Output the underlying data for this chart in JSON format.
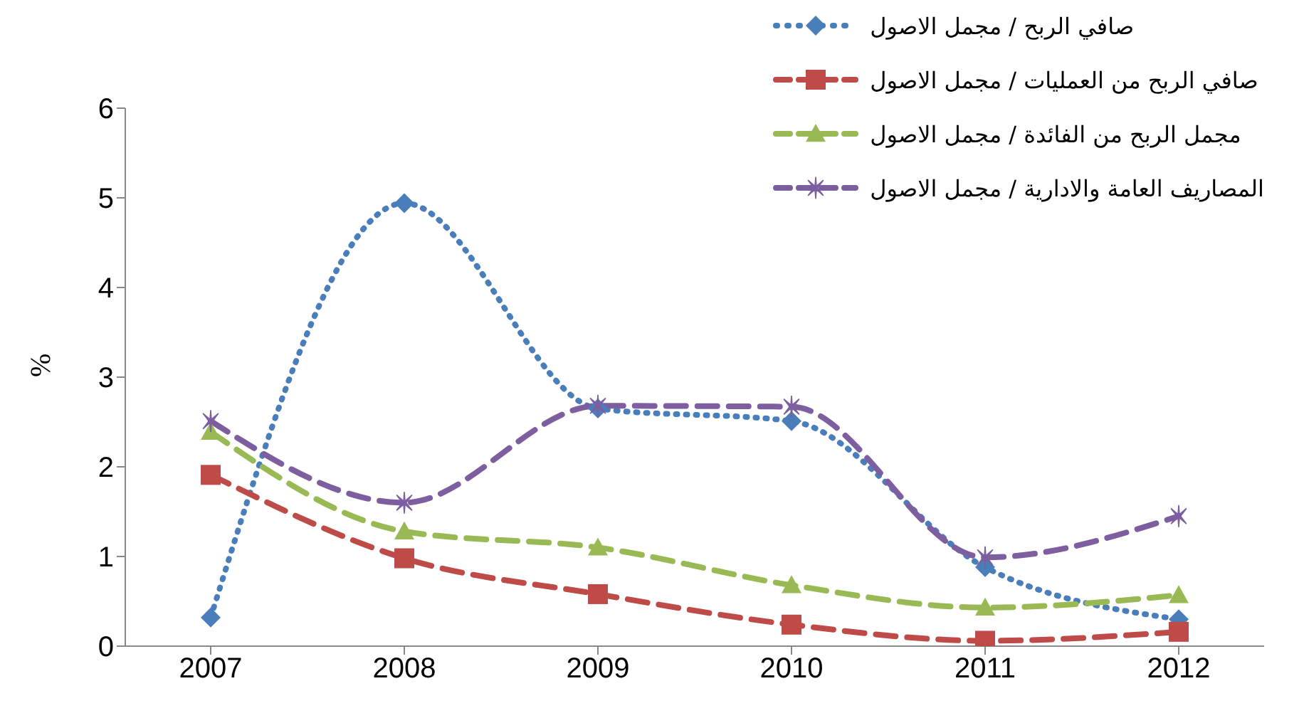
{
  "chart_data": {
    "type": "line",
    "ylabel": "%",
    "categories": [
      "2007",
      "2008",
      "2009",
      "2010",
      "2011",
      "2012"
    ],
    "series": [
      {
        "name": "صافي الربح / مجمل الاصول",
        "color": "#4a7ebb",
        "marker": "diamond",
        "line_style": "dotted",
        "values": [
          0.32,
          4.94,
          2.65,
          2.51,
          0.88,
          0.3
        ]
      },
      {
        "name": "صافي الربح من العمليات / مجمل الاصول",
        "color": "#be4b48",
        "marker": "square",
        "line_style": "dashed",
        "values": [
          1.91,
          0.98,
          0.58,
          0.24,
          0.06,
          0.16
        ]
      },
      {
        "name": "مجمل الربح من الفائدة / مجمل الاصول",
        "color": "#98b954",
        "marker": "triangle",
        "line_style": "dashed",
        "values": [
          2.39,
          1.28,
          1.1,
          0.68,
          0.43,
          0.57
        ]
      },
      {
        "name": "المصاريف العامة والادارية / مجمل الاصول",
        "color": "#7d5fa0",
        "marker": "cross",
        "line_style": "dashed",
        "values": [
          2.51,
          1.6,
          2.68,
          2.67,
          0.99,
          1.45
        ]
      }
    ],
    "ylim": [
      0,
      6
    ],
    "yticks": [
      0,
      1,
      2,
      3,
      4,
      5,
      6
    ],
    "legend": "top right"
  }
}
